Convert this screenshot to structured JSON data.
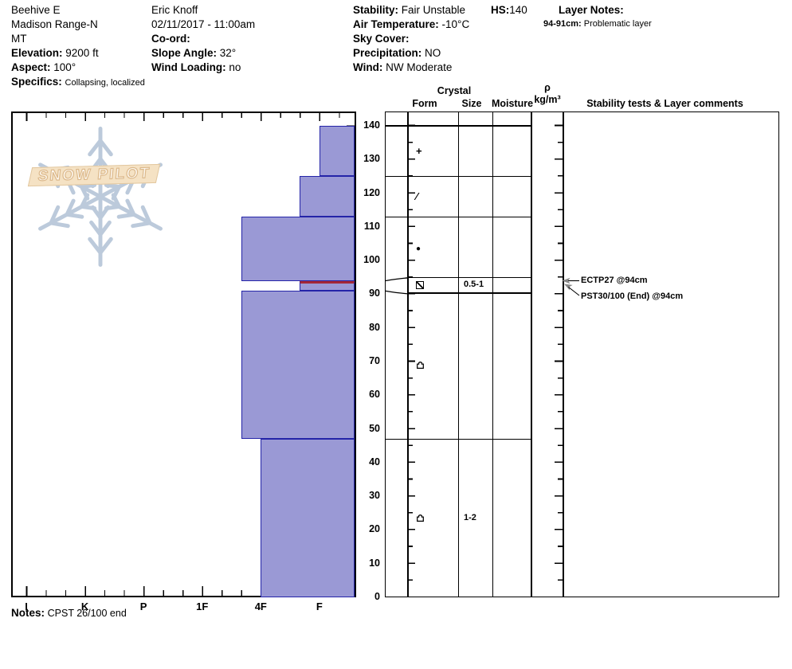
{
  "header": {
    "col1": {
      "site": "Beehive E",
      "range": "Madison Range-N",
      "state": "MT",
      "elevation_label": "Elevation:",
      "elevation": "9200 ft",
      "aspect_label": "Aspect:",
      "aspect": "100°",
      "specifics_label": "Specifics:",
      "specifics": "Collapsing, localized"
    },
    "col2": {
      "observer": "Eric Knoff",
      "datetime": "02/11/2017 - 11:00am",
      "coord_label": "Co-ord:",
      "coord": "",
      "slope_label": "Slope Angle:",
      "slope": "32°",
      "wind_loading_label": "Wind Loading:",
      "wind_loading": "no"
    },
    "col3": {
      "stability_label": "Stability:",
      "stability": "Fair Unstable",
      "air_temp_label": "Air Temperature:",
      "air_temp": "-10°C",
      "sky_label": "Sky Cover:",
      "sky": "",
      "precip_label": "Precipitation:",
      "precip": "NO",
      "wind_label": "Wind:",
      "wind": "NW Moderate"
    },
    "hs_label": "HS:",
    "hs": "140",
    "layer_notes_label": "Layer Notes:",
    "layer_note_range": "94-91cm:",
    "layer_note_text": "Problematic layer"
  },
  "table_header": {
    "crystal": "Crystal",
    "form": "Form",
    "size": "Size",
    "moisture": "Moisture",
    "rho": "ρ",
    "rho_units": "kg/m³",
    "comments": "Stability tests & Layer comments"
  },
  "chart_data": {
    "type": "bar",
    "orientation": "horizontal snow hardness profile",
    "depth_axis": {
      "unit": "cm",
      "min": 0,
      "max": 140,
      "tick_labels": [
        "140",
        "130",
        "120",
        "110",
        "100",
        "90",
        "80",
        "70",
        "60",
        "50",
        "40",
        "30",
        "20",
        "10",
        "0"
      ]
    },
    "hardness_axis": {
      "categories": [
        "I",
        "K",
        "P",
        "1F",
        "4F",
        "F"
      ]
    },
    "layers": [
      {
        "depth_top_cm": 140,
        "depth_bottom_cm": 125,
        "hardness": "F",
        "grain_form": "precipitation-particles",
        "symbol": "plus",
        "grain_size_mm": "",
        "moisture": "",
        "density": "",
        "problematic": false
      },
      {
        "depth_top_cm": 125,
        "depth_bottom_cm": 113,
        "hardness": "F+",
        "grain_form": "decomposing-fragments",
        "symbol": "slash",
        "grain_size_mm": "",
        "moisture": "",
        "density": "",
        "problematic": false
      },
      {
        "depth_top_cm": 113,
        "depth_bottom_cm": 94,
        "hardness": "4F+",
        "grain_form": "rounded-grains",
        "symbol": "dot",
        "grain_size_mm": "",
        "moisture": "",
        "density": "",
        "problematic": false
      },
      {
        "depth_top_cm": 94,
        "depth_bottom_cm": 91,
        "hardness": "F+",
        "grain_form": "faceted-crystals-mixed",
        "symbol": "facet-slash",
        "grain_size_mm": "0.5-1",
        "moisture": "",
        "density": "",
        "problematic": true
      },
      {
        "depth_top_cm": 91,
        "depth_bottom_cm": 47,
        "hardness": "4F+",
        "grain_form": "depth-hoar",
        "symbol": "depth-hoar",
        "grain_size_mm": "",
        "moisture": "",
        "density": "",
        "problematic": false
      },
      {
        "depth_top_cm": 47,
        "depth_bottom_cm": 0,
        "hardness": "4F",
        "grain_form": "depth-hoar",
        "symbol": "depth-hoar",
        "grain_size_mm": "1-2",
        "moisture": "",
        "density": "",
        "problematic": false
      }
    ],
    "annotations": [
      {
        "text": "ECTP27 @94cm",
        "depth_cm": 94
      },
      {
        "text": "PST30/100 (End) @94cm",
        "depth_cm": 94
      }
    ],
    "colors": {
      "bar_fill": "#9a99d5",
      "bar_border": "#2424a8",
      "problem_layer": "#a32638",
      "axis": "#000000"
    }
  },
  "watermark": {
    "text": "SNOW PILOT"
  },
  "notes": {
    "label": "Notes:",
    "text": "CPST 26/100 end"
  }
}
